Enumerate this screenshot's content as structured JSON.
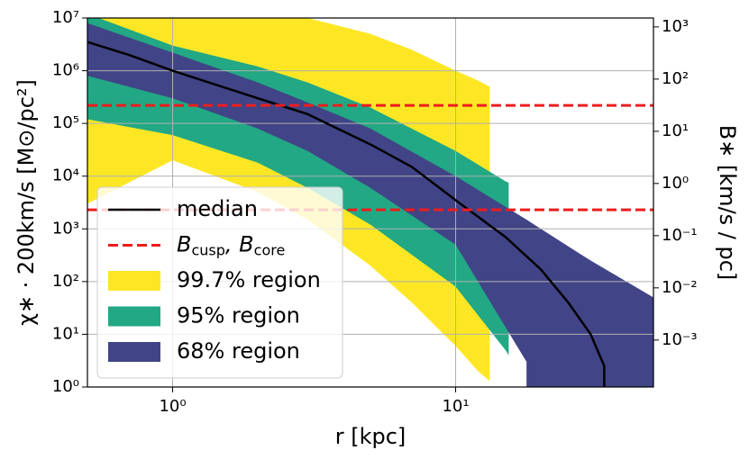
{
  "chart_data": {
    "type": "log-band",
    "xlabel": "r [kpc]",
    "ylabel": "χ∗ · 200km/s [M⊙/pc²]",
    "y2label": "B∗ [km/s / pc]",
    "xlim": [
      0.5,
      50
    ],
    "ylim": [
      1,
      10000000
    ],
    "y2lim": [
      0.000126,
      1480
    ],
    "log_x": true,
    "log_y": true,
    "grid": true,
    "legend": "lower left",
    "xticks": [
      {
        "value": 1,
        "label": "10⁰"
      },
      {
        "value": 10,
        "label": "10¹"
      }
    ],
    "yticks": [
      {
        "value": 1,
        "label": "10⁰"
      },
      {
        "value": 10,
        "label": "10¹"
      },
      {
        "value": 100,
        "label": "10²"
      },
      {
        "value": 1000,
        "label": "10³"
      },
      {
        "value": 10000,
        "label": "10⁴"
      },
      {
        "value": 100000,
        "label": "10⁵"
      },
      {
        "value": 1000000,
        "label": "10⁶"
      },
      {
        "value": 10000000,
        "label": "10⁷"
      }
    ],
    "y2ticks": [
      {
        "value": 0.001,
        "label": "10⁻³"
      },
      {
        "value": 0.01,
        "label": "10⁻²"
      },
      {
        "value": 0.1,
        "label": "10⁻¹"
      },
      {
        "value": 1,
        "label": "10⁰"
      },
      {
        "value": 10,
        "label": "10¹"
      },
      {
        "value": 100,
        "label": "10²"
      },
      {
        "value": 1000,
        "label": "10³"
      }
    ],
    "series": [
      {
        "name": "median",
        "kind": "line",
        "color": "#000000",
        "x": [
          0.5,
          0.7,
          1,
          2,
          3,
          5,
          7,
          10,
          15,
          20,
          25,
          30,
          33.5,
          33.5
        ],
        "values": [
          3500000,
          2000000,
          1000000,
          300000,
          150000,
          40000,
          15000,
          3500,
          700,
          170,
          40,
          10,
          2.5,
          1
        ]
      },
      {
        "name": [
          "B",
          "cusp",
          ", B",
          "core"
        ],
        "kind": "hline",
        "color": "#ee1c1c",
        "values": [
          220000,
          2300
        ]
      },
      {
        "name": "99.7% region",
        "kind": "band",
        "color": "#fde725",
        "x": [
          0.5,
          1,
          2,
          3,
          5,
          7,
          10,
          12,
          13.2,
          13.2
        ],
        "upper": [
          20000000,
          15000000,
          12000000,
          10000000,
          5000000,
          2500000,
          1000000,
          650000,
          500000,
          500000
        ],
        "lower": [
          3000,
          20000,
          5000,
          1500,
          200,
          40,
          6,
          2,
          1.3,
          1
        ]
      },
      {
        "name": "95% region",
        "kind": "band",
        "color": "#22a884",
        "x": [
          0.5,
          1,
          2,
          3,
          5,
          10,
          15,
          15.4,
          15.4
        ],
        "upper": [
          12000000,
          3000000,
          1200000,
          600000,
          200000,
          30000,
          8000,
          7500,
          7500
        ],
        "lower": [
          120000,
          60000,
          18000,
          6000,
          1200,
          80,
          5,
          4,
          1
        ]
      },
      {
        "name": "68% region",
        "kind": "band",
        "color": "#414487",
        "x": [
          0.5,
          1,
          2,
          3,
          5,
          10,
          17.8,
          17.8,
          20,
          30,
          50
        ],
        "upper": [
          8000000,
          2200000,
          600000,
          250000,
          80000,
          10000,
          1500,
          1500,
          1000,
          250,
          50
        ],
        "lower": [
          800000,
          300000,
          80000,
          30000,
          6000,
          500,
          3,
          1,
          1,
          1,
          1
        ]
      }
    ]
  }
}
